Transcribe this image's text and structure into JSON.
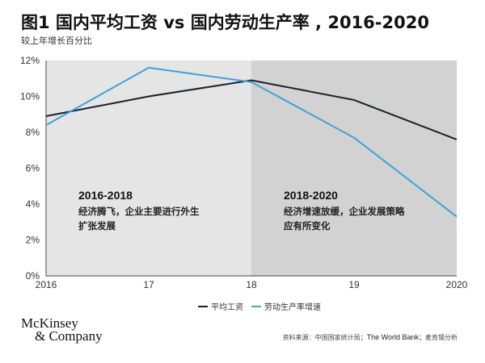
{
  "header": {
    "title": "图1 国内平均工资 vs 国内劳动生产率 , 2016-2020",
    "subtitle": "较上年增长百分比"
  },
  "chart_data": {
    "type": "line",
    "title": "图1 国内平均工资 vs 国内劳动生产率 , 2016-2020",
    "subtitle": "较上年增长百分比",
    "xlabel": "",
    "ylabel": "",
    "categories": [
      "2016",
      "17",
      "18",
      "19",
      "2020"
    ],
    "ylim": [
      0,
      12
    ],
    "yticks": [
      0,
      2,
      4,
      6,
      8,
      10,
      12
    ],
    "ytick_labels": [
      "0%",
      "2%",
      "4%",
      "6%",
      "8%",
      "10%",
      "12%"
    ],
    "grid": false,
    "legend_position": "bottom",
    "series": [
      {
        "name": "平均工资",
        "color": "#1a1f2b",
        "values": [
          8.9,
          10.0,
          10.9,
          9.8,
          7.6
        ]
      },
      {
        "name": "劳动生产率增速",
        "color": "#3aa3d9",
        "values": [
          8.4,
          11.6,
          10.8,
          7.7,
          3.3
        ]
      }
    ],
    "regions": [
      {
        "from": "2016",
        "to": "18",
        "color": "#e5e5e5",
        "label": "2016-2018",
        "lines": [
          "经济腾飞，企业主要进行外生",
          "扩张发展"
        ]
      },
      {
        "from": "18",
        "to": "2020",
        "color": "#d2d2d2",
        "label": "2018-2020",
        "lines": [
          "经济增速放缓，企业发展策略",
          "应有所变化"
        ]
      }
    ]
  },
  "footer": {
    "logo_line1": "McKinsey",
    "logo_line2": "& Company",
    "source_prefix": "资料来源：中国国家统计局；",
    "source_en": "The World Bank",
    "source_suffix": "；麦肯锡分析"
  }
}
